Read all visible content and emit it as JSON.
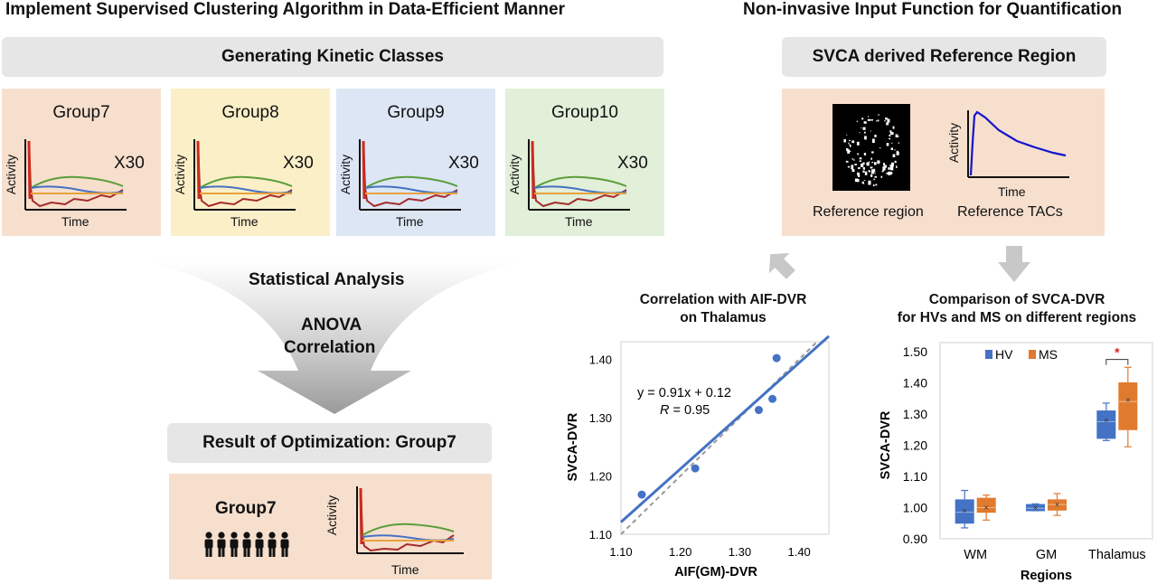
{
  "left_heading": "Implement Supervised Clustering Algorithm in Data-Efficient Manner",
  "right_heading": "Non-invasive Input Function for Quantification",
  "kinetic_classes_label": "Generating Kinetic Classes",
  "groups": [
    {
      "name": "Group7",
      "multiplier": "X30",
      "bg": "#f6dfcd"
    },
    {
      "name": "Group8",
      "multiplier": "X30",
      "bg": "#fbefc8"
    },
    {
      "name": "Group9",
      "multiplier": "X30",
      "bg": "#dde6f4"
    },
    {
      "name": "Group10",
      "multiplier": "X30",
      "bg": "#e2efd9"
    }
  ],
  "axis_activity": "Activity",
  "axis_time": "Time",
  "stats": {
    "title": "Statistical Analysis",
    "line1": "ANOVA",
    "line2": "Correlation"
  },
  "result_label": "Result of Optimization: Group7",
  "result_group": "Group7",
  "svca_label": "SVCA derived Reference Region",
  "ref_region_label": "Reference region",
  "ref_tacs_label": "Reference TACs",
  "colors": {
    "red": "#cc2a1e",
    "green": "#5a9e3a",
    "blue": "#4472c4",
    "orange": "#e8a23c",
    "darkred": "#a52a2a",
    "hv": "#4472c4",
    "ms": "#e07a2f",
    "tac": "#1414d0"
  },
  "corr_chart": {
    "title_line1": "Correlation with AIF-DVR",
    "title_line2": "on Thalamus",
    "equation": "y = 0.91x + 0.12",
    "r_label": "R",
    "r_value": " = 0.95"
  },
  "comp_chart": {
    "title_line1": "Comparison of SVCA-DVR",
    "title_line2": "for HVs and MS on different regions",
    "significance": "*"
  },
  "chart_data": [
    {
      "type": "scatter",
      "title": "Correlation with AIF-DVR on Thalamus",
      "xlabel": "AIF(GM)-DVR",
      "ylabel": "SVCA-DVR",
      "xlim": [
        1.1,
        1.45
      ],
      "ylim": [
        1.1,
        1.43
      ],
      "x_ticks": [
        "1.10",
        "1.20",
        "1.30",
        "1.40"
      ],
      "y_ticks": [
        "1.10",
        "1.20",
        "1.30",
        "1.40"
      ],
      "points": [
        {
          "x": 1.135,
          "y": 1.168
        },
        {
          "x": 1.225,
          "y": 1.213
        },
        {
          "x": 1.332,
          "y": 1.313
        },
        {
          "x": 1.355,
          "y": 1.332
        },
        {
          "x": 1.362,
          "y": 1.402
        }
      ],
      "fit": {
        "slope": 0.91,
        "intercept": 0.12
      },
      "identity_line": true
    },
    {
      "type": "box",
      "title": "Comparison of SVCA-DVR for HVs and MS on different regions",
      "xlabel": "Regions",
      "ylabel": "SVCA-DVR",
      "ylim": [
        0.9,
        1.5
      ],
      "y_ticks": [
        "0.90",
        "1.00",
        "1.10",
        "1.20",
        "1.30",
        "1.40",
        "1.50"
      ],
      "categories": [
        "WM",
        "GM",
        "Thalamus"
      ],
      "legend": "top-left",
      "series": [
        {
          "name": "HV",
          "boxes": [
            {
              "min": 0.935,
              "q1": 0.95,
              "median": 0.985,
              "mean": 0.99,
              "q3": 1.025,
              "max": 1.055
            },
            {
              "min": 0.99,
              "q1": 0.99,
              "median": 0.998,
              "mean": 1.0,
              "q3": 1.01,
              "max": 1.012
            },
            {
              "min": 1.215,
              "q1": 1.222,
              "median": 1.275,
              "mean": 1.28,
              "q3": 1.31,
              "max": 1.335
            }
          ]
        },
        {
          "name": "MS",
          "boxes": [
            {
              "min": 0.96,
              "q1": 0.985,
              "median": 1.0,
              "mean": 1.0,
              "q3": 1.03,
              "max": 1.04
            },
            {
              "min": 0.975,
              "q1": 0.992,
              "median": 1.01,
              "mean": 1.01,
              "q3": 1.025,
              "max": 1.045
            },
            {
              "min": 1.195,
              "q1": 1.25,
              "median": 1.34,
              "mean": 1.345,
              "q3": 1.4,
              "max": 1.45
            }
          ]
        }
      ]
    }
  ]
}
